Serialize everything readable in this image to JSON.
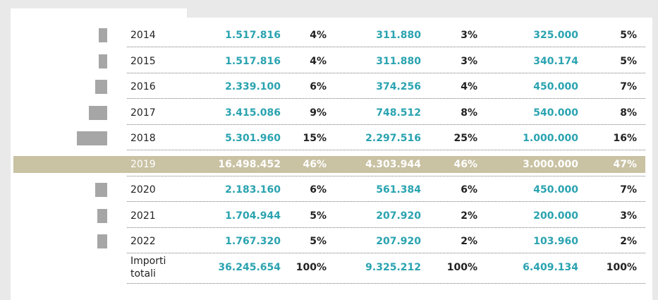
{
  "table": {
    "rows": [
      [
        "2014",
        "1.517.816",
        "4%",
        "311.880",
        "3%",
        "325.000",
        "5%"
      ],
      [
        "2015",
        "1.517.816",
        "4%",
        "311.880",
        "3%",
        "340.174",
        "5%"
      ],
      [
        "2016",
        "2.339.100",
        "6%",
        "374.256",
        "4%",
        "450.000",
        "7%"
      ],
      [
        "2017",
        "3.415.086",
        "9%",
        "748.512",
        "8%",
        "540.000",
        "8%"
      ],
      [
        "2018",
        "5.301.960",
        "15%",
        "2.297.516",
        "25%",
        "1.000.000",
        "16%"
      ],
      [
        "2019",
        "16.498.452",
        "46%",
        "4.303.944",
        "46%",
        "3.000.000",
        "47%"
      ],
      [
        "2020",
        "2.183.160",
        "6%",
        "561.384",
        "6%",
        "450.000",
        "7%"
      ],
      [
        "2021",
        "1.704.944",
        "5%",
        "207.920",
        "2%",
        "200.000",
        "3%"
      ],
      [
        "2022",
        "1.767.320",
        "5%",
        "207.920",
        "2%",
        "103.960",
        "2%"
      ]
    ],
    "totals": [
      "Importi totali",
      "36.245.654",
      "100%",
      "9.325.212",
      "100%",
      "6.409.134",
      "100%"
    ],
    "highlight_row": 5
  }
}
